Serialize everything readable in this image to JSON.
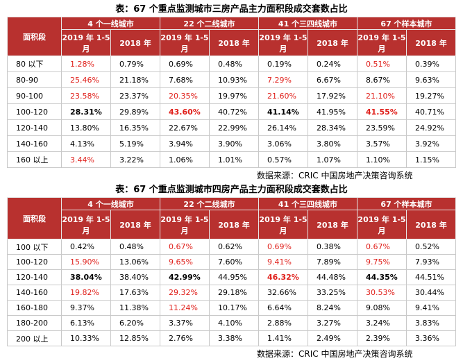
{
  "tables": [
    {
      "title": "表：67 个重点监测城市三房产品主力面积段成交套数占比",
      "corner": "面积段",
      "groups": [
        "4 个一线城市",
        "22 个二线城市",
        "41 个三四线城市",
        "67 个样本城市"
      ],
      "subheaders": [
        "2019 年 1-5 月",
        "2018 年"
      ],
      "rows": [
        {
          "label": "80 以下",
          "cells": [
            {
              "text": "1.28%",
              "red": true
            },
            {
              "text": "0.79%"
            },
            {
              "text": "0.69%"
            },
            {
              "text": "0.48%"
            },
            {
              "text": "0.19%"
            },
            {
              "text": "0.24%"
            },
            {
              "text": "0.51%",
              "red": true
            },
            {
              "text": "0.39%"
            }
          ]
        },
        {
          "label": "80-90",
          "cells": [
            {
              "text": "25.46%",
              "red": true
            },
            {
              "text": "21.18%"
            },
            {
              "text": "7.68%"
            },
            {
              "text": "10.93%"
            },
            {
              "text": "7.29%",
              "red": true
            },
            {
              "text": "6.67%"
            },
            {
              "text": "8.67%"
            },
            {
              "text": "9.63%"
            }
          ]
        },
        {
          "label": "90-100",
          "cells": [
            {
              "text": "23.58%",
              "red": true
            },
            {
              "text": "23.37%"
            },
            {
              "text": "20.35%",
              "red": true
            },
            {
              "text": "19.97%"
            },
            {
              "text": "21.60%",
              "red": true
            },
            {
              "text": "17.92%"
            },
            {
              "text": "21.10%",
              "red": true
            },
            {
              "text": "19.27%"
            }
          ]
        },
        {
          "label": "100-120",
          "cells": [
            {
              "text": "28.31%",
              "bold": true
            },
            {
              "text": "29.89%"
            },
            {
              "text": "43.60%",
              "red": true,
              "bold": true
            },
            {
              "text": "40.72%"
            },
            {
              "text": "41.14%",
              "bold": true
            },
            {
              "text": "41.95%"
            },
            {
              "text": "41.55%",
              "red": true,
              "bold": true
            },
            {
              "text": "40.71%"
            }
          ]
        },
        {
          "label": "120-140",
          "cells": [
            {
              "text": "13.80%"
            },
            {
              "text": "16.35%"
            },
            {
              "text": "22.67%"
            },
            {
              "text": "22.99%"
            },
            {
              "text": "26.14%"
            },
            {
              "text": "28.34%"
            },
            {
              "text": "23.59%"
            },
            {
              "text": "24.92%"
            }
          ]
        },
        {
          "label": "140-160",
          "cells": [
            {
              "text": "4.13%"
            },
            {
              "text": "5.19%"
            },
            {
              "text": "3.94%"
            },
            {
              "text": "3.90%"
            },
            {
              "text": "3.06%"
            },
            {
              "text": "3.80%"
            },
            {
              "text": "3.57%"
            },
            {
              "text": "3.92%"
            }
          ]
        },
        {
          "label": "160 以上",
          "cells": [
            {
              "text": "3.44%",
              "red": true
            },
            {
              "text": "3.22%"
            },
            {
              "text": "1.06%"
            },
            {
              "text": "1.01%"
            },
            {
              "text": "0.57%"
            },
            {
              "text": "1.07%"
            },
            {
              "text": "1.10%"
            },
            {
              "text": "1.15%"
            }
          ]
        }
      ],
      "source": "数据来源：CRIC 中国房地产决策咨询系统"
    },
    {
      "title": "表：67 个重点监测城市四房产品主力面积段成交套数占比",
      "corner": "面积段",
      "groups": [
        "4 个一线城市",
        "22 个二线城市",
        "41 个三四线城市",
        "67 个样本城市"
      ],
      "subheaders": [
        "2019 年 1-5 月",
        "2018 年"
      ],
      "rows": [
        {
          "label": "100 以下",
          "cells": [
            {
              "text": "0.42%"
            },
            {
              "text": "0.48%"
            },
            {
              "text": "0.67%",
              "red": true
            },
            {
              "text": "0.62%"
            },
            {
              "text": "0.69%",
              "red": true
            },
            {
              "text": "0.38%"
            },
            {
              "text": "0.67%",
              "red": true
            },
            {
              "text": "0.52%"
            }
          ]
        },
        {
          "label": "100-120",
          "cells": [
            {
              "text": "15.90%",
              "red": true
            },
            {
              "text": "13.06%"
            },
            {
              "text": "9.65%",
              "red": true
            },
            {
              "text": "7.60%"
            },
            {
              "text": "9.41%",
              "red": true
            },
            {
              "text": "7.89%"
            },
            {
              "text": "9.75%",
              "red": true
            },
            {
              "text": "7.93%"
            }
          ]
        },
        {
          "label": "120-140",
          "cells": [
            {
              "text": "38.04%",
              "bold": true
            },
            {
              "text": "38.40%"
            },
            {
              "text": "42.99%",
              "bold": true
            },
            {
              "text": "44.95%"
            },
            {
              "text": "46.32%",
              "red": true,
              "bold": true
            },
            {
              "text": "44.48%"
            },
            {
              "text": "44.35%",
              "bold": true
            },
            {
              "text": "44.51%"
            }
          ]
        },
        {
          "label": "140-160",
          "cells": [
            {
              "text": "19.82%",
              "red": true
            },
            {
              "text": "17.63%"
            },
            {
              "text": "29.32%",
              "red": true
            },
            {
              "text": "29.18%"
            },
            {
              "text": "32.66%"
            },
            {
              "text": "33.25%"
            },
            {
              "text": "30.53%",
              "red": true
            },
            {
              "text": "30.44%"
            }
          ]
        },
        {
          "label": "160-180",
          "cells": [
            {
              "text": "9.37%"
            },
            {
              "text": "11.38%"
            },
            {
              "text": "11.24%",
              "red": true
            },
            {
              "text": "10.17%"
            },
            {
              "text": "6.64%"
            },
            {
              "text": "8.24%"
            },
            {
              "text": "9.08%"
            },
            {
              "text": "9.41%"
            }
          ]
        },
        {
          "label": "180-200",
          "cells": [
            {
              "text": "6.13%"
            },
            {
              "text": "6.20%"
            },
            {
              "text": "3.37%"
            },
            {
              "text": "4.10%"
            },
            {
              "text": "2.88%"
            },
            {
              "text": "3.27%"
            },
            {
              "text": "3.24%"
            },
            {
              "text": "3.83%"
            }
          ]
        },
        {
          "label": "200 以上",
          "cells": [
            {
              "text": "10.33%"
            },
            {
              "text": "12.85%"
            },
            {
              "text": "2.76%"
            },
            {
              "text": "3.38%"
            },
            {
              "text": "1.41%"
            },
            {
              "text": "2.49%"
            },
            {
              "text": "2.39%"
            },
            {
              "text": "3.36%"
            }
          ]
        }
      ],
      "source": "数据来源：CRIC 中国房地产决策咨询系统"
    }
  ]
}
